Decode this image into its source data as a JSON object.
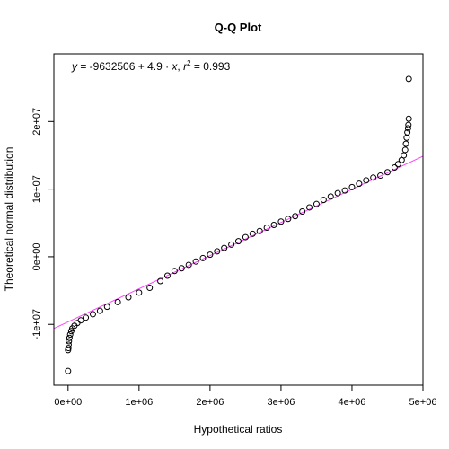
{
  "chart_data": {
    "type": "scatter",
    "title": "Q-Q Plot",
    "xlabel": "Hypothetical ratios",
    "ylabel": "Theoretical normal distribution",
    "xlim": [
      -200000,
      5000000
    ],
    "ylim": [
      -19000000,
      30000000
    ],
    "x_ticks": [
      0,
      1000000,
      2000000,
      3000000,
      4000000,
      5000000
    ],
    "x_tick_labels": [
      "0e+00",
      "1e+06",
      "2e+06",
      "3e+06",
      "4e+06",
      "5e+06"
    ],
    "y_ticks": [
      -10000000,
      0,
      10000000,
      20000000
    ],
    "y_tick_labels": [
      "-1e+07",
      "0e+00",
      "1e+07",
      "2e+07"
    ],
    "grid": false,
    "point_color": "#000000",
    "regression": {
      "intercept": -9632506,
      "slope": 4.9,
      "r_squared": 0.993,
      "color": "#ff44ff",
      "label_parts": {
        "y": "y",
        "eq_mid": " = -9632506 + 4.9 · ",
        "x": "x",
        "comma": ",  ",
        "r": "r",
        "sup": "2",
        "tail": " = 0.993"
      }
    },
    "series": [
      {
        "points": [
          [
            0,
            -16900000
          ],
          [
            0,
            -13800000
          ],
          [
            5000,
            -13500000
          ],
          [
            8000,
            -13000000
          ],
          [
            12000,
            -12500000
          ],
          [
            20000,
            -12000000
          ],
          [
            30000,
            -11500000
          ],
          [
            45000,
            -11000000
          ],
          [
            60000,
            -10600000
          ],
          [
            90000,
            -10200000
          ],
          [
            130000,
            -9800000
          ],
          [
            180000,
            -9400000
          ],
          [
            250000,
            -9000000
          ],
          [
            350000,
            -8500000
          ],
          [
            450000,
            -8000000
          ],
          [
            550000,
            -7400000
          ],
          [
            700000,
            -6700000
          ],
          [
            850000,
            -6000000
          ],
          [
            1000000,
            -5300000
          ],
          [
            1150000,
            -4600000
          ],
          [
            1300000,
            -3600000
          ],
          [
            1400000,
            -2800000
          ],
          [
            1500000,
            -2100000
          ],
          [
            1600000,
            -1700000
          ],
          [
            1700000,
            -1200000
          ],
          [
            1800000,
            -700000
          ],
          [
            1900000,
            -200000
          ],
          [
            2000000,
            300000
          ],
          [
            2100000,
            800000
          ],
          [
            2200000,
            1300000
          ],
          [
            2300000,
            1800000
          ],
          [
            2400000,
            2300000
          ],
          [
            2500000,
            2900000
          ],
          [
            2600000,
            3400000
          ],
          [
            2700000,
            3800000
          ],
          [
            2800000,
            4300000
          ],
          [
            2900000,
            4700000
          ],
          [
            3000000,
            5200000
          ],
          [
            3100000,
            5600000
          ],
          [
            3200000,
            6000000
          ],
          [
            3300000,
            6700000
          ],
          [
            3400000,
            7300000
          ],
          [
            3500000,
            7800000
          ],
          [
            3600000,
            8400000
          ],
          [
            3700000,
            8900000
          ],
          [
            3800000,
            9400000
          ],
          [
            3900000,
            9800000
          ],
          [
            4000000,
            10300000
          ],
          [
            4100000,
            10800000
          ],
          [
            4200000,
            11300000
          ],
          [
            4300000,
            11700000
          ],
          [
            4400000,
            12000000
          ],
          [
            4500000,
            12500000
          ],
          [
            4600000,
            13200000
          ],
          [
            4650000,
            13700000
          ],
          [
            4700000,
            14300000
          ],
          [
            4730000,
            15000000
          ],
          [
            4750000,
            15800000
          ],
          [
            4760000,
            16700000
          ],
          [
            4770000,
            17600000
          ],
          [
            4780000,
            18400000
          ],
          [
            4790000,
            19000000
          ],
          [
            4795000,
            19500000
          ],
          [
            4800000,
            20400000
          ],
          [
            4800000,
            26300000
          ]
        ]
      }
    ]
  }
}
